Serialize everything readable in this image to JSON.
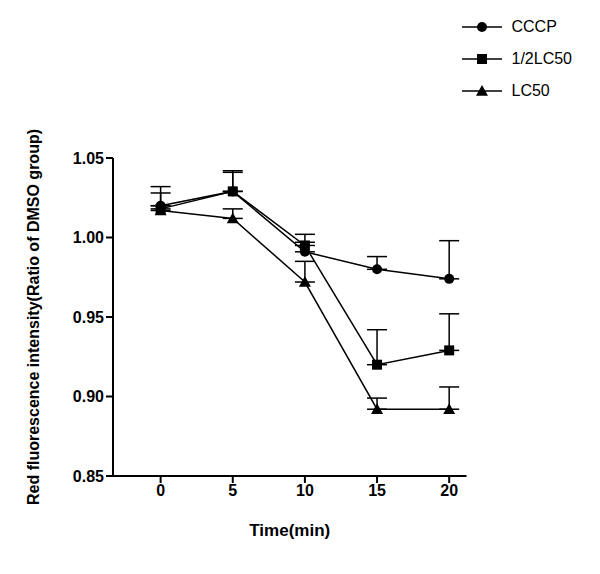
{
  "chart_data": {
    "type": "line",
    "x_label": "Time(min)",
    "y_label": "Red fluorescence intensity(Ratio of DMSO group)",
    "x": [
      0,
      5,
      10,
      15,
      20
    ],
    "xlim": [
      -3.3,
      21.2
    ],
    "xticks": [
      0,
      5,
      10,
      15,
      20
    ],
    "ylim": [
      0.85,
      1.05
    ],
    "yticks": [
      0.85,
      {
        "value": 0.9,
        "label": "0.90"
      },
      0.95,
      {
        "value": 1.0,
        "label": "1.00"
      },
      1.05
    ],
    "grid": false,
    "legend": "top-right",
    "series": [
      {
        "name": "CCCP",
        "color": "#000000",
        "marker": "circle",
        "values": [
          1.02,
          1.029,
          0.991,
          0.98,
          0.974
        ],
        "errors": [
          0.012,
          0.012,
          0.006,
          0.008,
          0.024
        ]
      },
      {
        "name": "1/2LC50",
        "color": "#000000",
        "marker": "square",
        "values": [
          1.018,
          1.029,
          0.995,
          0.92,
          0.929
        ],
        "errors": [
          0.01,
          0.013,
          0.007,
          0.022,
          0.023
        ]
      },
      {
        "name": "LC50",
        "color": "#000000",
        "marker": "triangle",
        "values": [
          1.017,
          1.012,
          0.972,
          0.892,
          0.892
        ],
        "errors": [
          0.003,
          0.006,
          0.013,
          0.007,
          0.014
        ]
      }
    ]
  }
}
